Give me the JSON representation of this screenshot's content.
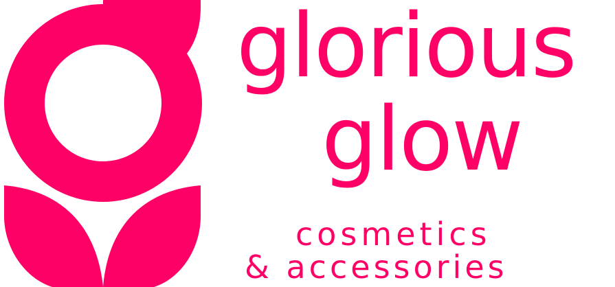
{
  "colors": {
    "brand": "#ff0066",
    "background": "#ffffff"
  },
  "logo": {
    "icon": "flower-g-logo-icon"
  },
  "wordmark": {
    "line1": "glorious",
    "line2": "glow"
  },
  "tagline": {
    "line1": "cosmetics",
    "line2": "& accessories"
  }
}
